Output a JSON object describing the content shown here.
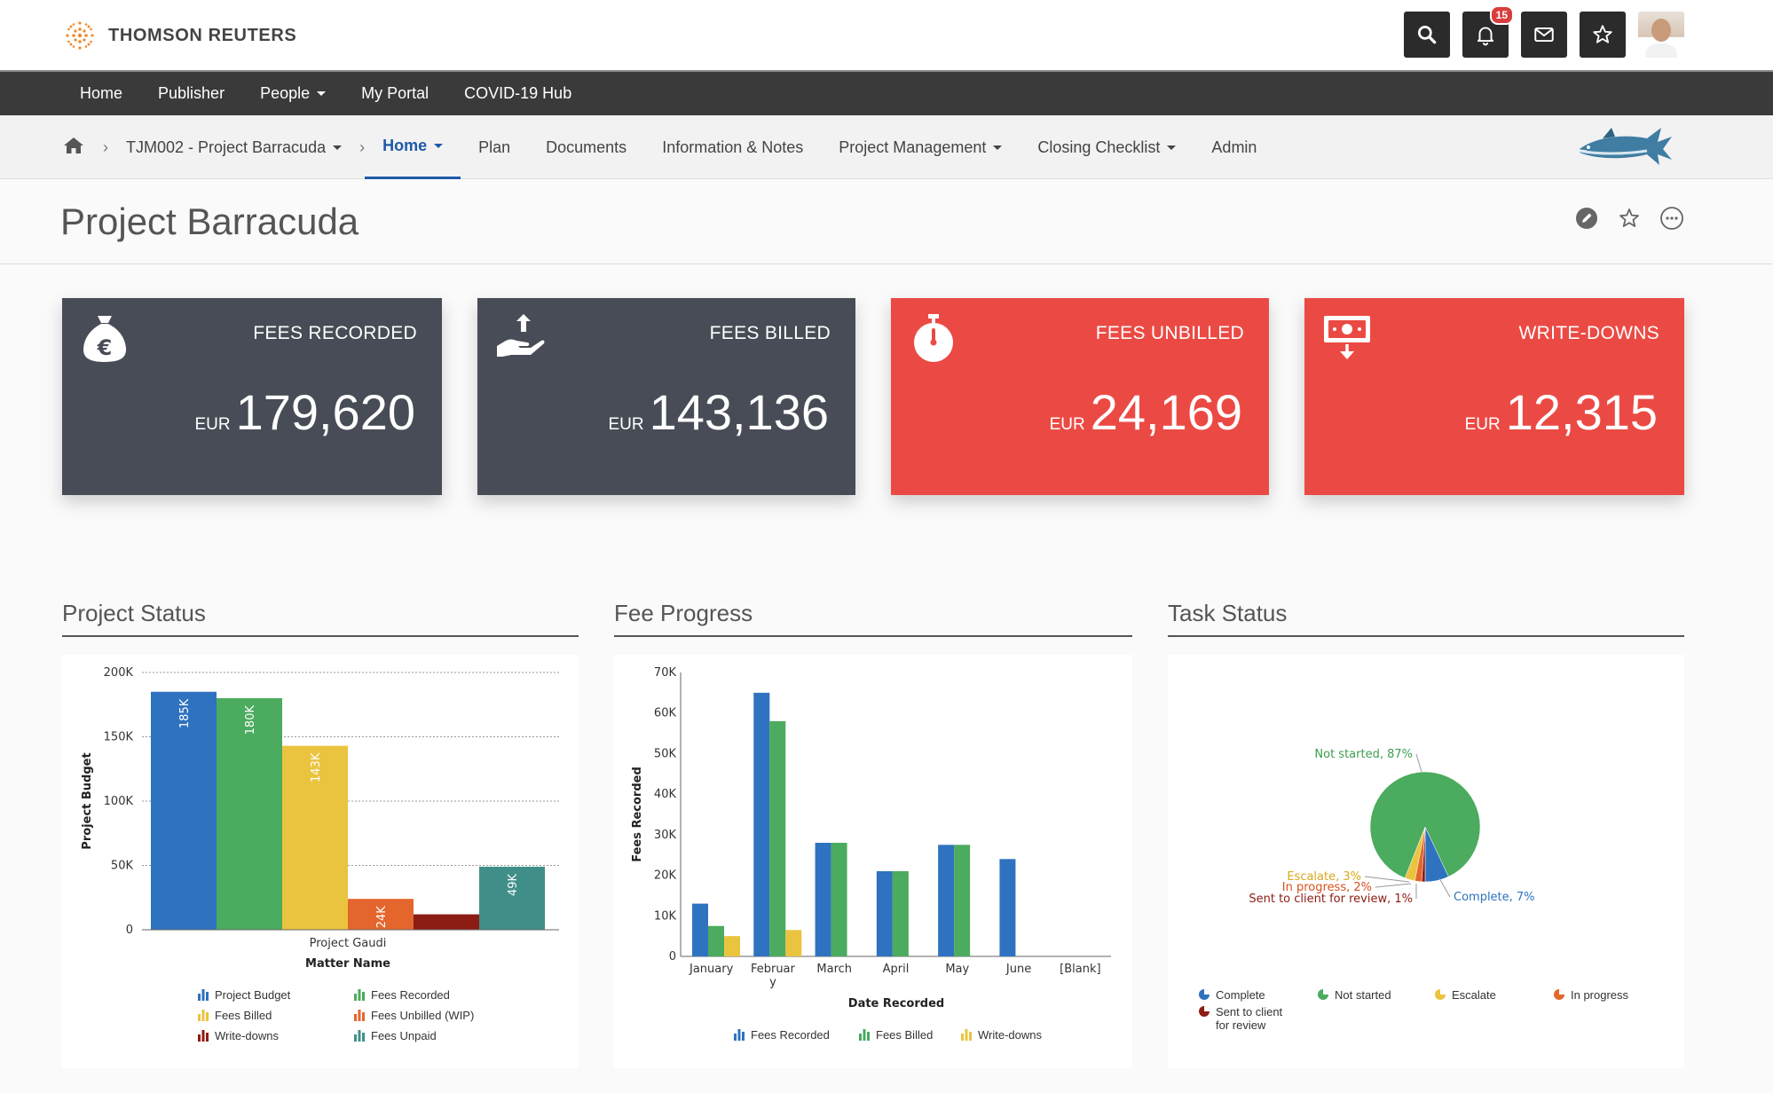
{
  "brand": {
    "name": "THOMSON REUTERS"
  },
  "header": {
    "notifications_count": "15",
    "icons": [
      "search-icon",
      "bell-icon",
      "mail-icon",
      "star-icon",
      "avatar"
    ]
  },
  "main_nav": {
    "items": [
      {
        "label": "Home"
      },
      {
        "label": "Publisher"
      },
      {
        "label": "People",
        "dropdown": true
      },
      {
        "label": "My Portal"
      },
      {
        "label": "COVID-19 Hub"
      }
    ]
  },
  "sub_nav": {
    "project": "TJM002 - Project Barracuda",
    "items": [
      {
        "label": "Home",
        "active": true,
        "dropdown": true
      },
      {
        "label": "Plan"
      },
      {
        "label": "Documents"
      },
      {
        "label": "Information & Notes"
      },
      {
        "label": "Project Management",
        "dropdown": true
      },
      {
        "label": "Closing Checklist",
        "dropdown": true
      },
      {
        "label": "Admin"
      }
    ]
  },
  "page": {
    "title": "Project Barracuda"
  },
  "kpis": [
    {
      "label": "FEES RECORDED",
      "currency": "EUR",
      "value": "179,620",
      "icon": "money-bag-euro-icon",
      "color": "#484c56"
    },
    {
      "label": "FEES BILLED",
      "currency": "EUR",
      "value": "143,136",
      "icon": "hand-money-icon",
      "color": "#484c56"
    },
    {
      "label": "FEES UNBILLED",
      "currency": "EUR",
      "value": "24,169",
      "icon": "stopwatch-icon",
      "color": "#eb4a44"
    },
    {
      "label": "WRITE-DOWNS",
      "currency": "EUR",
      "value": "12,315",
      "icon": "banknote-down-icon",
      "color": "#eb4a44"
    }
  ],
  "panels": {
    "project_status": {
      "title": "Project Status"
    },
    "fee_progress": {
      "title": "Fee Progress"
    },
    "task_status": {
      "title": "Task Status"
    }
  },
  "chart_data": [
    {
      "type": "bar",
      "xlabel": "Matter Name",
      "ylabel": "Project Budget",
      "categories": [
        "Project Gaudi"
      ],
      "ylim": [
        0,
        200000
      ],
      "yticks": [
        "0",
        "50K",
        "100K",
        "150K",
        "200K"
      ],
      "grid": true,
      "series": [
        {
          "name": "Project Budget",
          "values": [
            185000
          ],
          "label": "185K",
          "color": "#2f72c0"
        },
        {
          "name": "Fees Recorded",
          "values": [
            180000
          ],
          "label": "180K",
          "color": "#4bab5e"
        },
        {
          "name": "Fees Billed",
          "values": [
            143000
          ],
          "label": "143K",
          "color": "#eac43f"
        },
        {
          "name": "Fees Unbilled (WIP)",
          "values": [
            24000
          ],
          "label": "24K",
          "color": "#e4662c"
        },
        {
          "name": "Write-downs",
          "values": [
            12000
          ],
          "label": "",
          "color": "#8c1c13"
        },
        {
          "name": "Fees Unpaid",
          "values": [
            49000
          ],
          "label": "49K",
          "color": "#3f8f88"
        }
      ]
    },
    {
      "type": "bar",
      "xlabel": "Date Recorded",
      "ylabel": "Fees Recorded",
      "categories": [
        "January",
        "Februar y",
        "March",
        "April",
        "May",
        "June",
        "[Blank]"
      ],
      "ylim": [
        0,
        70000
      ],
      "yticks": [
        "0",
        "10K",
        "20K",
        "30K",
        "40K",
        "50K",
        "60K",
        "70K"
      ],
      "series": [
        {
          "name": "Fees Recorded",
          "values": [
            13000,
            65000,
            28000,
            21000,
            27500,
            24000,
            0
          ],
          "color": "#2f72c0"
        },
        {
          "name": "Fees Billed",
          "values": [
            7500,
            58000,
            28000,
            21000,
            27500,
            0,
            0
          ],
          "color": "#4bab5e"
        },
        {
          "name": "Write-downs",
          "values": [
            5000,
            6500,
            0,
            0,
            0,
            0,
            0
          ],
          "color": "#eac43f"
        }
      ]
    },
    {
      "type": "pie",
      "slices": [
        {
          "name": "Not started",
          "value": 87,
          "label": "Not started, 87%",
          "color": "#4bab5e"
        },
        {
          "name": "Complete",
          "value": 7,
          "label": "Complete, 7%",
          "color": "#2f72c0"
        },
        {
          "name": "Sent to client for review",
          "value": 1,
          "label": "Sent to client for review, 1%",
          "color": "#8c1c13"
        },
        {
          "name": "In progress",
          "value": 2,
          "label": "In progress, 2%",
          "color": "#e4662c"
        },
        {
          "name": "Escalate",
          "value": 3,
          "label": "Escalate, 3%",
          "color": "#eac43f"
        }
      ],
      "legend": [
        "Complete",
        "Not started",
        "Escalate",
        "In progress",
        "Sent to client for review"
      ]
    }
  ]
}
